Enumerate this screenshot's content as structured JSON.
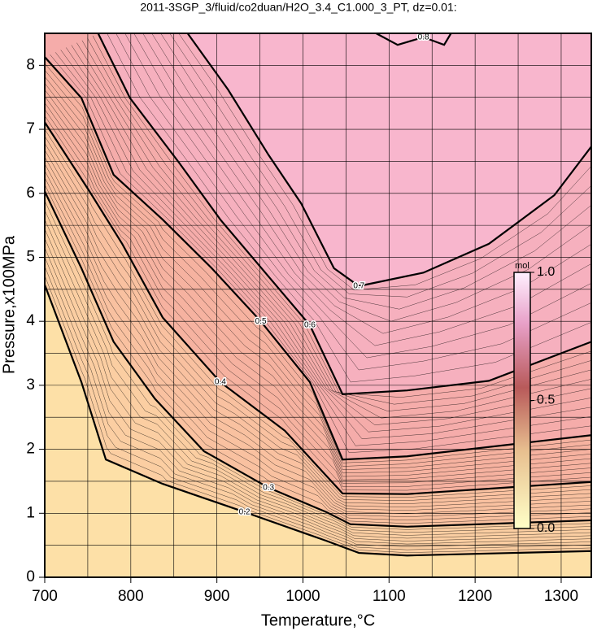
{
  "chart_data": {
    "type": "contour",
    "title": "2011-3SGP_3/fluid/co2duan/H2O_3.4_C1.000_3_PT, dz=0.01:",
    "x_label": "Temperature,°C",
    "y_label": "Pressure,x100MPa",
    "xlim": [
      700,
      1335
    ],
    "ylim": [
      0,
      8.5
    ],
    "xticks": [
      700,
      800,
      900,
      1000,
      1100,
      1200,
      1300
    ],
    "yticks": [
      0,
      1,
      2,
      3,
      4,
      5,
      6,
      7,
      8
    ],
    "xminor": [
      750,
      850,
      950,
      1050,
      1150,
      1250
    ],
    "yminor": [
      0.5,
      1.5,
      2.5,
      3.5,
      4.5,
      5.5,
      6.5,
      7.5
    ],
    "grid": true,
    "contours": [
      {
        "level": 0.2,
        "x": [
          700,
          742.6,
          771,
          837,
          932,
          1027,
          1065,
          1121,
          1335
        ],
        "y": [
          4.57,
          3.05,
          1.84,
          1.46,
          1.02,
          0.57,
          0.38,
          0.34,
          0.41
        ]
      },
      {
        "level": 0.3,
        "x": [
          700,
          742.6,
          780,
          828,
          885,
          960,
          1027,
          1055,
          1121,
          1335
        ],
        "y": [
          6.03,
          4.83,
          3.68,
          2.79,
          1.97,
          1.4,
          1.02,
          0.83,
          0.79,
          0.89
        ]
      },
      {
        "level": 0.4,
        "x": [
          700,
          752,
          790,
          837,
          904,
          979,
          1046,
          1121,
          1335
        ],
        "y": [
          7.11,
          6.03,
          5.21,
          4.06,
          3.05,
          2.29,
          1.31,
          1.3,
          1.49
        ]
      },
      {
        "level": 0.5,
        "x": [
          700,
          742.6,
          780,
          837,
          894,
          951,
          1008,
          1046,
          1121,
          1335
        ],
        "y": [
          8.13,
          7.49,
          6.29,
          5.59,
          4.83,
          4.0,
          3.05,
          1.84,
          1.89,
          2.22
        ]
      },
      {
        "level": 0.6,
        "x": [
          762,
          799,
          856,
          904,
          960,
          1008,
          1046,
          1121,
          1216,
          1335
        ],
        "y": [
          8.5,
          7.49,
          6.48,
          5.59,
          4.7,
          3.94,
          2.86,
          2.92,
          3.07,
          3.68
        ]
      },
      {
        "level": 0.7,
        "x": [
          866,
          913,
          960,
          998,
          1036,
          1065,
          1140,
          1216,
          1292,
          1335
        ],
        "y": [
          8.5,
          7.62,
          6.6,
          5.84,
          4.83,
          4.55,
          4.76,
          5.21,
          5.97,
          6.73
        ]
      },
      {
        "level": 0.8,
        "x": [
          1085,
          1110,
          1140,
          1164,
          1172
        ],
        "y": [
          8.5,
          8.32,
          8.44,
          8.32,
          8.5
        ]
      }
    ],
    "colorbar": {
      "label": "mol",
      "ticks": [
        {
          "value": 0,
          "label": "0.0"
        },
        {
          "value": 0.5,
          "label": "0.5"
        },
        {
          "value": 1,
          "label": "1.0"
        }
      ]
    }
  }
}
